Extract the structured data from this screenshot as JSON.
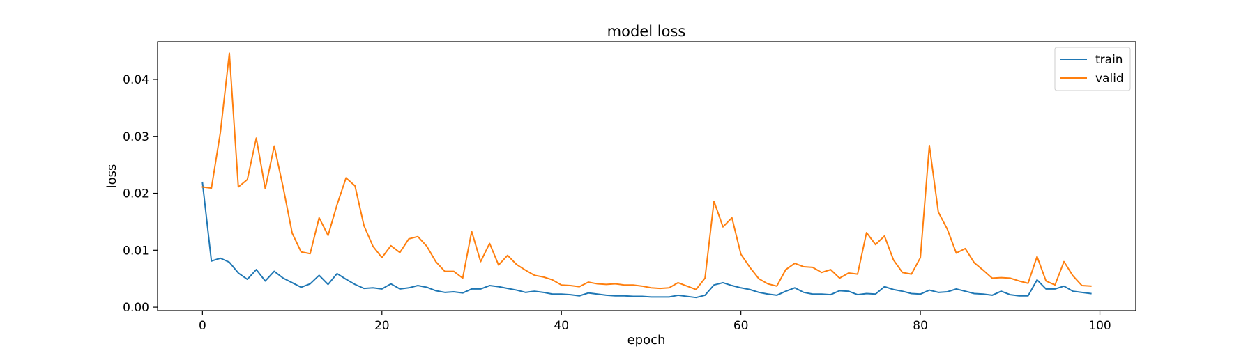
{
  "chart_data": {
    "type": "line",
    "title": "model loss",
    "xlabel": "epoch",
    "ylabel": "loss",
    "xlim": [
      -5,
      104
    ],
    "ylim": [
      -0.0006,
      0.0466
    ],
    "xticks": [
      0,
      20,
      40,
      60,
      80,
      100
    ],
    "yticks": [
      0.0,
      0.01,
      0.02,
      0.03,
      0.04
    ],
    "ytick_labels": [
      "0.00",
      "0.01",
      "0.02",
      "0.03",
      "0.04"
    ],
    "legend_position": "top-right",
    "series": [
      {
        "name": "train",
        "color": "#1f77b4",
        "values": [
          0.0219,
          0.0081,
          0.0086,
          0.0079,
          0.006,
          0.0049,
          0.0066,
          0.0046,
          0.0063,
          0.0051,
          0.0043,
          0.0035,
          0.0041,
          0.0056,
          0.004,
          0.0059,
          0.0049,
          0.004,
          0.0033,
          0.0034,
          0.0032,
          0.0041,
          0.0032,
          0.0034,
          0.0038,
          0.0035,
          0.0029,
          0.0026,
          0.0027,
          0.0025,
          0.0032,
          0.0032,
          0.0038,
          0.0036,
          0.0033,
          0.003,
          0.0026,
          0.0028,
          0.0026,
          0.0023,
          0.0023,
          0.0022,
          0.002,
          0.0025,
          0.0023,
          0.0021,
          0.002,
          0.002,
          0.0019,
          0.0019,
          0.0018,
          0.0018,
          0.0018,
          0.0021,
          0.0019,
          0.0017,
          0.0021,
          0.0039,
          0.0043,
          0.0038,
          0.0034,
          0.0031,
          0.0026,
          0.0023,
          0.0021,
          0.0028,
          0.0034,
          0.0026,
          0.0023,
          0.0023,
          0.0022,
          0.0029,
          0.0028,
          0.0022,
          0.0024,
          0.0023,
          0.0036,
          0.0031,
          0.0028,
          0.0024,
          0.0023,
          0.003,
          0.0026,
          0.0027,
          0.0032,
          0.0028,
          0.0024,
          0.0023,
          0.0021,
          0.0028,
          0.0022,
          0.002,
          0.002,
          0.0048,
          0.0032,
          0.0032,
          0.0037,
          0.0028,
          0.0026,
          0.0024
        ]
      },
      {
        "name": "valid",
        "color": "#ff7f0e",
        "values": [
          0.0211,
          0.0209,
          0.0307,
          0.0446,
          0.0211,
          0.0224,
          0.0297,
          0.0208,
          0.0283,
          0.021,
          0.013,
          0.0097,
          0.0094,
          0.0157,
          0.0126,
          0.018,
          0.0227,
          0.0213,
          0.0143,
          0.0107,
          0.0087,
          0.0108,
          0.0096,
          0.012,
          0.0124,
          0.0107,
          0.008,
          0.0063,
          0.0063,
          0.0051,
          0.0133,
          0.008,
          0.0112,
          0.0074,
          0.0091,
          0.0075,
          0.0065,
          0.0056,
          0.0053,
          0.0048,
          0.0039,
          0.0038,
          0.0036,
          0.0044,
          0.0041,
          0.004,
          0.0041,
          0.0039,
          0.0039,
          0.0037,
          0.0034,
          0.0033,
          0.0034,
          0.0043,
          0.0037,
          0.0031,
          0.0051,
          0.0186,
          0.0141,
          0.0157,
          0.0093,
          0.007,
          0.005,
          0.0041,
          0.0037,
          0.0066,
          0.0077,
          0.0071,
          0.007,
          0.0061,
          0.0066,
          0.0051,
          0.006,
          0.0058,
          0.0131,
          0.011,
          0.0125,
          0.0083,
          0.0061,
          0.0058,
          0.0087,
          0.0284,
          0.0167,
          0.0137,
          0.0095,
          0.0103,
          0.0078,
          0.0065,
          0.0051,
          0.0052,
          0.0051,
          0.0046,
          0.0042,
          0.0089,
          0.0046,
          0.0039,
          0.008,
          0.0055,
          0.0038,
          0.0037
        ]
      }
    ]
  }
}
